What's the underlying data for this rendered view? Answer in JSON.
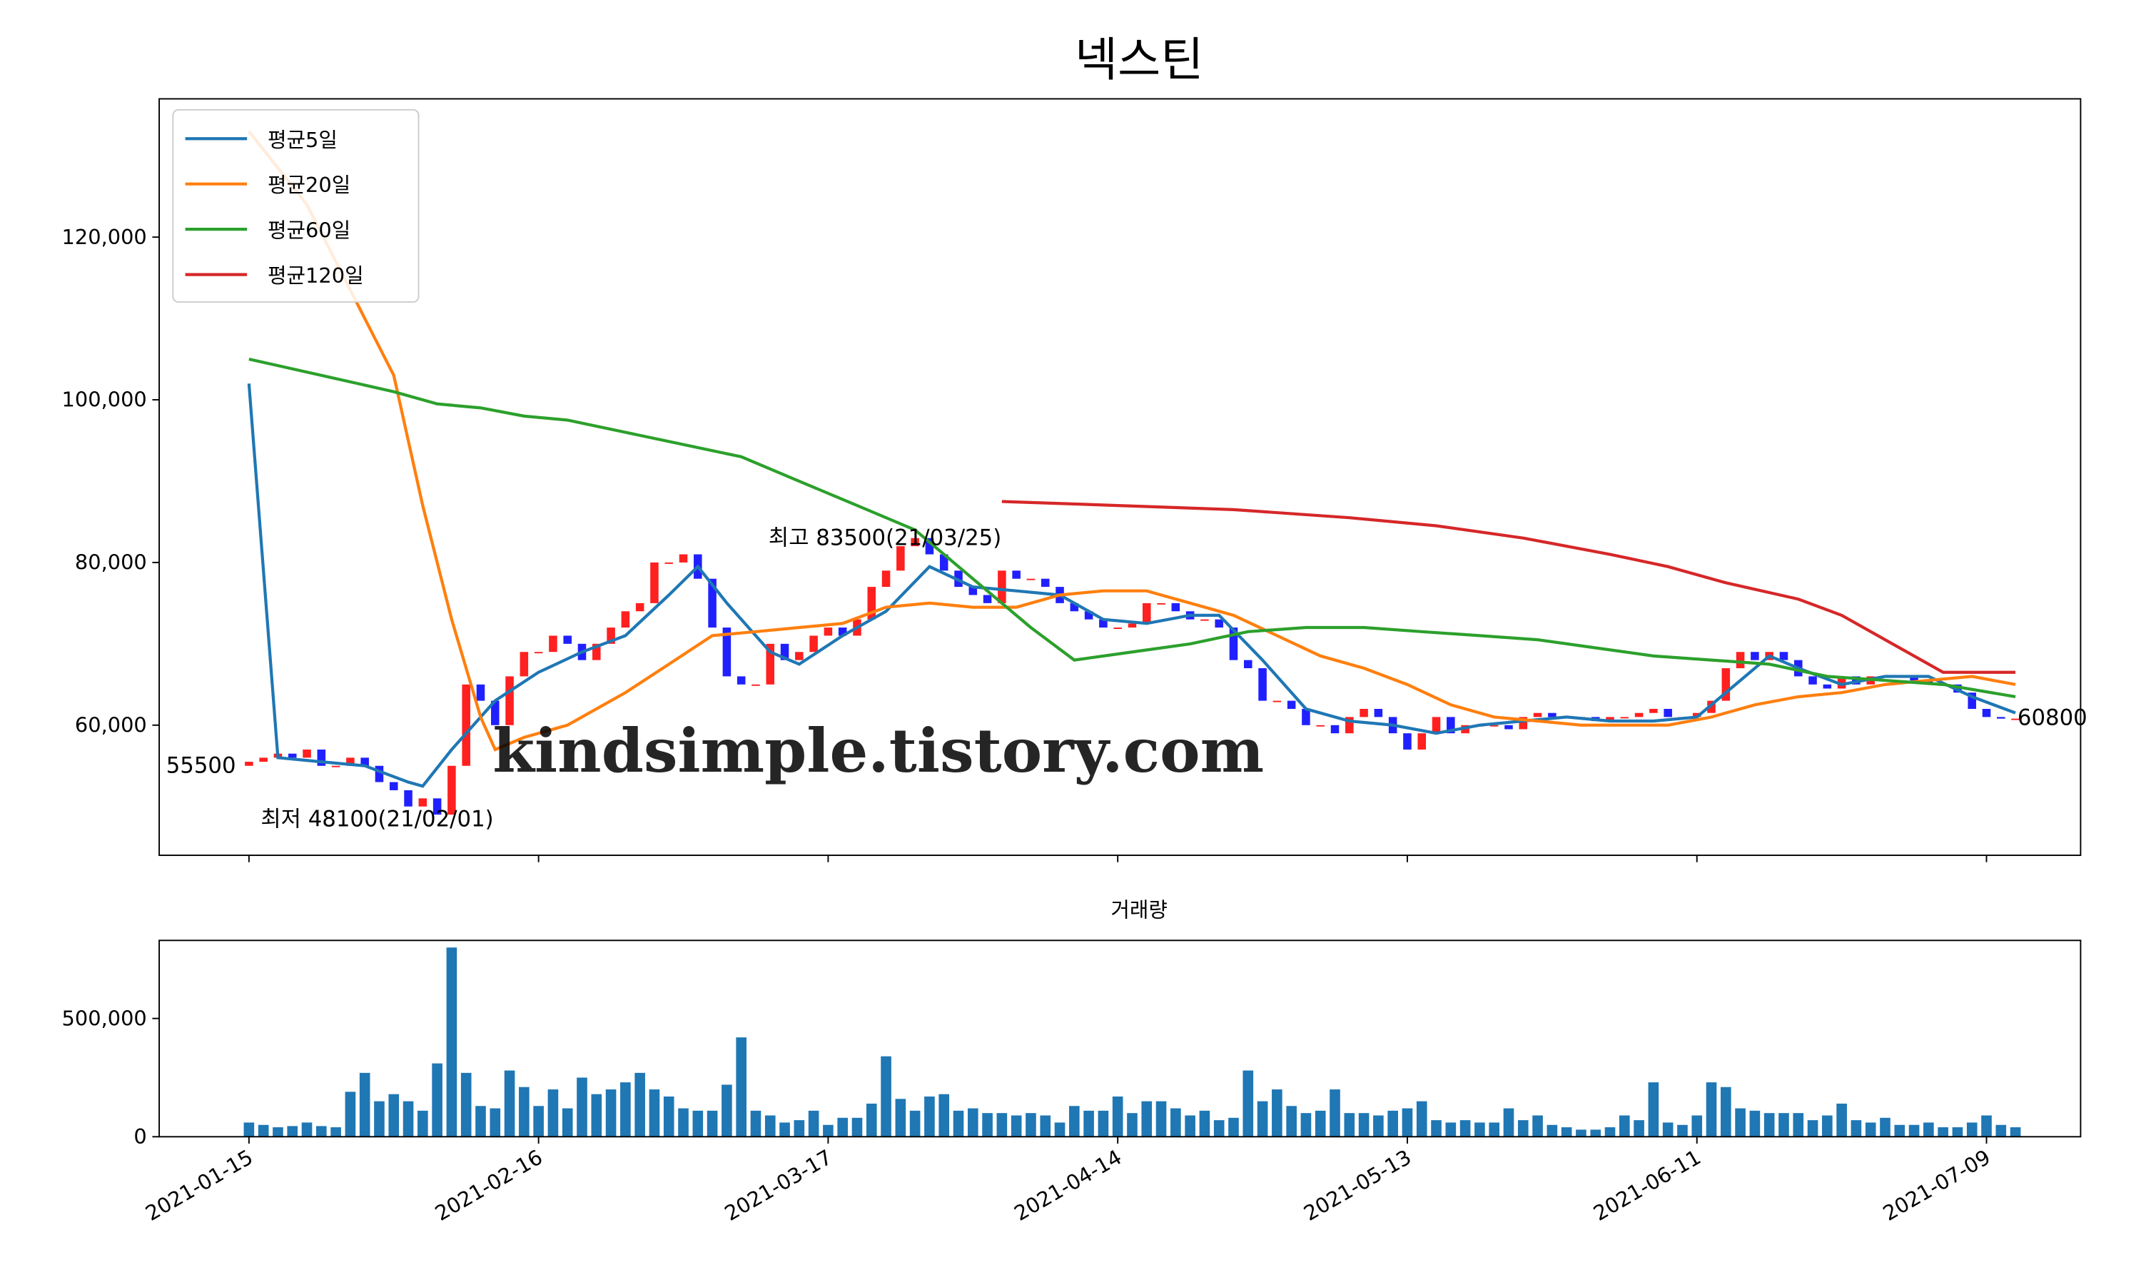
{
  "chart_data": [
    {
      "type": "candlestick",
      "title": "넥스틴",
      "open": [
        55000,
        55500,
        56000,
        56500,
        56000,
        57000,
        55000,
        55000,
        56000,
        55000,
        53000,
        52000,
        50000,
        51000,
        49000,
        55000,
        65000,
        63000,
        60000,
        66000,
        69000,
        69000,
        71000,
        70000,
        68000,
        70000,
        72000,
        74000,
        75000,
        80000,
        80000,
        81000,
        78000,
        72000,
        66000,
        65000,
        65000,
        70000,
        68000,
        69000,
        71000,
        72000,
        71000,
        73000,
        77000,
        79000,
        82000,
        83000,
        81000,
        79000,
        77000,
        76000,
        75000,
        79000,
        78000,
        78000,
        77000,
        75000,
        74000,
        73000,
        72000,
        72000,
        72500,
        75000,
        75000,
        74000,
        73000,
        73000,
        72000,
        68000,
        67000,
        63000,
        63000,
        62000,
        60000,
        60000,
        59000,
        61000,
        62000,
        61000,
        59000,
        57000,
        59000,
        61000,
        59000,
        60000,
        60000,
        60000,
        59500,
        61000,
        61500,
        61000,
        61000,
        61000,
        60500,
        61000,
        61000,
        61500,
        62000,
        61000,
        61000,
        61500,
        63000,
        67000,
        69000,
        68000,
        69000,
        68000,
        66000,
        65000,
        64500,
        66000,
        65000,
        66000,
        66000,
        66000,
        65500,
        65000,
        65000,
        64000,
        62000,
        61000,
        60800
      ],
      "close": [
        55500,
        56000,
        56500,
        56000,
        57000,
        55000,
        55000,
        56000,
        55000,
        53000,
        52000,
        50000,
        51000,
        49000,
        55000,
        65000,
        63000,
        60000,
        66000,
        69000,
        69000,
        71000,
        70000,
        68000,
        70000,
        72000,
        74000,
        75000,
        80000,
        80000,
        81000,
        78000,
        72000,
        66000,
        65000,
        65000,
        70000,
        68000,
        69000,
        71000,
        72000,
        71000,
        73000,
        77000,
        79000,
        82000,
        83000,
        81000,
        79000,
        77000,
        76000,
        75000,
        79000,
        78000,
        78000,
        77000,
        75000,
        74000,
        73000,
        72000,
        72000,
        72500,
        75000,
        75000,
        74000,
        73000,
        73000,
        72000,
        68000,
        67000,
        63000,
        63000,
        62000,
        60000,
        60000,
        59000,
        61000,
        62000,
        61000,
        59000,
        57000,
        59000,
        61000,
        59000,
        60000,
        60000,
        60000,
        59500,
        61000,
        61500,
        61000,
        61000,
        61000,
        60500,
        61000,
        61000,
        61500,
        62000,
        61000,
        61000,
        61500,
        63000,
        67000,
        69000,
        68000,
        69000,
        68000,
        66000,
        65000,
        64500,
        66000,
        65000,
        66000,
        66000,
        66000,
        65500,
        65000,
        65000,
        64000,
        62000,
        61000,
        60800,
        60800
      ],
      "up_color": "#ff2020",
      "down_color": "#2020ff",
      "ylim": [
        44000,
        137000
      ],
      "yticks": [
        {
          "value": 60000,
          "label": "60,000"
        },
        {
          "value": 80000,
          "label": "80,000"
        },
        {
          "value": 100000,
          "label": "100,000"
        },
        {
          "value": 120000,
          "label": "120,000"
        }
      ],
      "series": [
        {
          "name": "평균5일",
          "color": "#1f77b4",
          "x": [
            0,
            2,
            5,
            8,
            11,
            12,
            14,
            17,
            20,
            23,
            26,
            29,
            31,
            33,
            36,
            38,
            41,
            44,
            47,
            50,
            53,
            56,
            59,
            62,
            65,
            67,
            70,
            73,
            76,
            79,
            82,
            85,
            88,
            91,
            94,
            97,
            100,
            103,
            105,
            107,
            110,
            113,
            116,
            119,
            122
          ],
          "values": [
            102000,
            56000,
            55500,
            55000,
            53000,
            52500,
            57000,
            63000,
            66500,
            69000,
            71000,
            76000,
            79500,
            75000,
            69000,
            67500,
            71000,
            74000,
            79500,
            77000,
            76500,
            76000,
            73000,
            72500,
            73500,
            73500,
            68000,
            62000,
            60500,
            60000,
            59000,
            60000,
            60500,
            61000,
            60500,
            60500,
            61000,
            65500,
            68500,
            67000,
            65000,
            66000,
            66000,
            63500,
            61500
          ]
        },
        {
          "name": "평균20일",
          "color": "#ff7f0e",
          "x": [
            0,
            4,
            8,
            10,
            12,
            14,
            16,
            17,
            19,
            22,
            26,
            29,
            32,
            35,
            38,
            41,
            44,
            47,
            50,
            53,
            56,
            59,
            62,
            65,
            68,
            71,
            74,
            77,
            80,
            83,
            86,
            89,
            92,
            95,
            98,
            101,
            104,
            107,
            110,
            113,
            116,
            119,
            122
          ],
          "values": [
            133000,
            124000,
            110000,
            103000,
            87000,
            73000,
            61000,
            57000,
            58500,
            60000,
            64000,
            67500,
            71000,
            71500,
            72000,
            72500,
            74500,
            75000,
            74500,
            74500,
            76000,
            76500,
            76500,
            75000,
            73500,
            71000,
            68500,
            67000,
            65000,
            62500,
            61000,
            60500,
            60000,
            60000,
            60000,
            61000,
            62500,
            63500,
            64000,
            65000,
            65500,
            66000,
            65000
          ]
        },
        {
          "name": "평균60일",
          "color": "#2ca02c",
          "x": [
            0,
            5,
            10,
            13,
            16,
            19,
            22,
            26,
            30,
            34,
            38,
            42,
            46,
            50,
            54,
            57,
            61,
            65,
            69,
            73,
            77,
            81,
            85,
            89,
            93,
            97,
            101,
            105,
            109,
            113,
            117,
            122
          ],
          "values": [
            105000,
            103000,
            101000,
            99500,
            99000,
            98000,
            97500,
            96000,
            94500,
            93000,
            90000,
            87000,
            84000,
            78000,
            72000,
            68000,
            69000,
            70000,
            71500,
            72000,
            72000,
            71500,
            71000,
            70500,
            69500,
            68500,
            68000,
            67500,
            66000,
            65500,
            65000,
            63500
          ]
        },
        {
          "name": "평균120일",
          "color": "#d62728",
          "x": [
            52,
            60,
            68,
            76,
            82,
            88,
            94,
            98,
            102,
            107,
            110,
            114,
            117,
            122
          ],
          "values": [
            87500,
            87000,
            86500,
            85500,
            84500,
            83000,
            81000,
            79500,
            77500,
            75500,
            73500,
            69500,
            66500,
            66500
          ]
        }
      ],
      "annotations": [
        {
          "text": "최고 83500(21/03/25)",
          "color": "#ff0000"
        },
        {
          "text": "최저 48100(21/02/01)",
          "color": "#0000ff"
        },
        {
          "text": "55500",
          "color": "#000000"
        },
        {
          "text": "60800",
          "color": "#000000"
        },
        {
          "text": "kindsimple.tistory.com",
          "color": "#e6a0ee"
        }
      ],
      "legend": "upper left"
    },
    {
      "type": "bar",
      "title": "거래량",
      "color": "#1f77b4",
      "categories": [
        "2021-01-15",
        null,
        null,
        null,
        null,
        null,
        null,
        null,
        null,
        null,
        null,
        null,
        null,
        null,
        null,
        null,
        null,
        null,
        null,
        null,
        "2021-02-16",
        null,
        null,
        null,
        null,
        null,
        null,
        null,
        null,
        null,
        null,
        null,
        null,
        null,
        null,
        null,
        null,
        null,
        null,
        null,
        "2021-03-17",
        null,
        null,
        null,
        null,
        null,
        null,
        null,
        null,
        null,
        null,
        null,
        null,
        null,
        null,
        null,
        null,
        null,
        null,
        null,
        "2021-04-14",
        null,
        null,
        null,
        null,
        null,
        null,
        null,
        null,
        null,
        null,
        null,
        null,
        null,
        null,
        null,
        null,
        null,
        null,
        null,
        "2021-05-13",
        null,
        null,
        null,
        null,
        null,
        null,
        null,
        null,
        null,
        null,
        null,
        null,
        null,
        null,
        null,
        null,
        null,
        null,
        null,
        "2021-06-11",
        null,
        null,
        null,
        null,
        null,
        null,
        null,
        null,
        null,
        null,
        null,
        null,
        null,
        null,
        null,
        null,
        null,
        null,
        null,
        "2021-07-09",
        null,
        null
      ],
      "values": [
        60000,
        50000,
        40000,
        45000,
        60000,
        45000,
        40000,
        190000,
        270000,
        150000,
        180000,
        150000,
        110000,
        310000,
        800000,
        270000,
        130000,
        120000,
        280000,
        210000,
        130000,
        200000,
        120000,
        250000,
        180000,
        200000,
        230000,
        270000,
        200000,
        170000,
        120000,
        110000,
        110000,
        220000,
        420000,
        110000,
        90000,
        60000,
        70000,
        110000,
        50000,
        80000,
        80000,
        140000,
        340000,
        160000,
        110000,
        170000,
        180000,
        110000,
        120000,
        100000,
        100000,
        90000,
        100000,
        90000,
        60000,
        130000,
        110000,
        110000,
        170000,
        100000,
        150000,
        150000,
        120000,
        90000,
        110000,
        70000,
        80000,
        280000,
        150000,
        200000,
        130000,
        100000,
        110000,
        200000,
        100000,
        100000,
        90000,
        110000,
        120000,
        150000,
        70000,
        60000,
        70000,
        60000,
        60000,
        120000,
        70000,
        90000,
        50000,
        40000,
        30000,
        30000,
        40000,
        90000,
        70000,
        230000,
        60000,
        50000,
        90000,
        230000,
        210000,
        120000,
        110000,
        100000,
        100000,
        100000,
        70000,
        90000,
        140000,
        70000,
        60000,
        80000,
        50000,
        50000,
        60000,
        40000,
        40000,
        60000,
        90000,
        50000,
        40000
      ],
      "ylim": [
        0,
        830000
      ],
      "yticks": [
        0,
        {
          "value": 500000,
          "label": "500,000"
        }
      ]
    }
  ]
}
